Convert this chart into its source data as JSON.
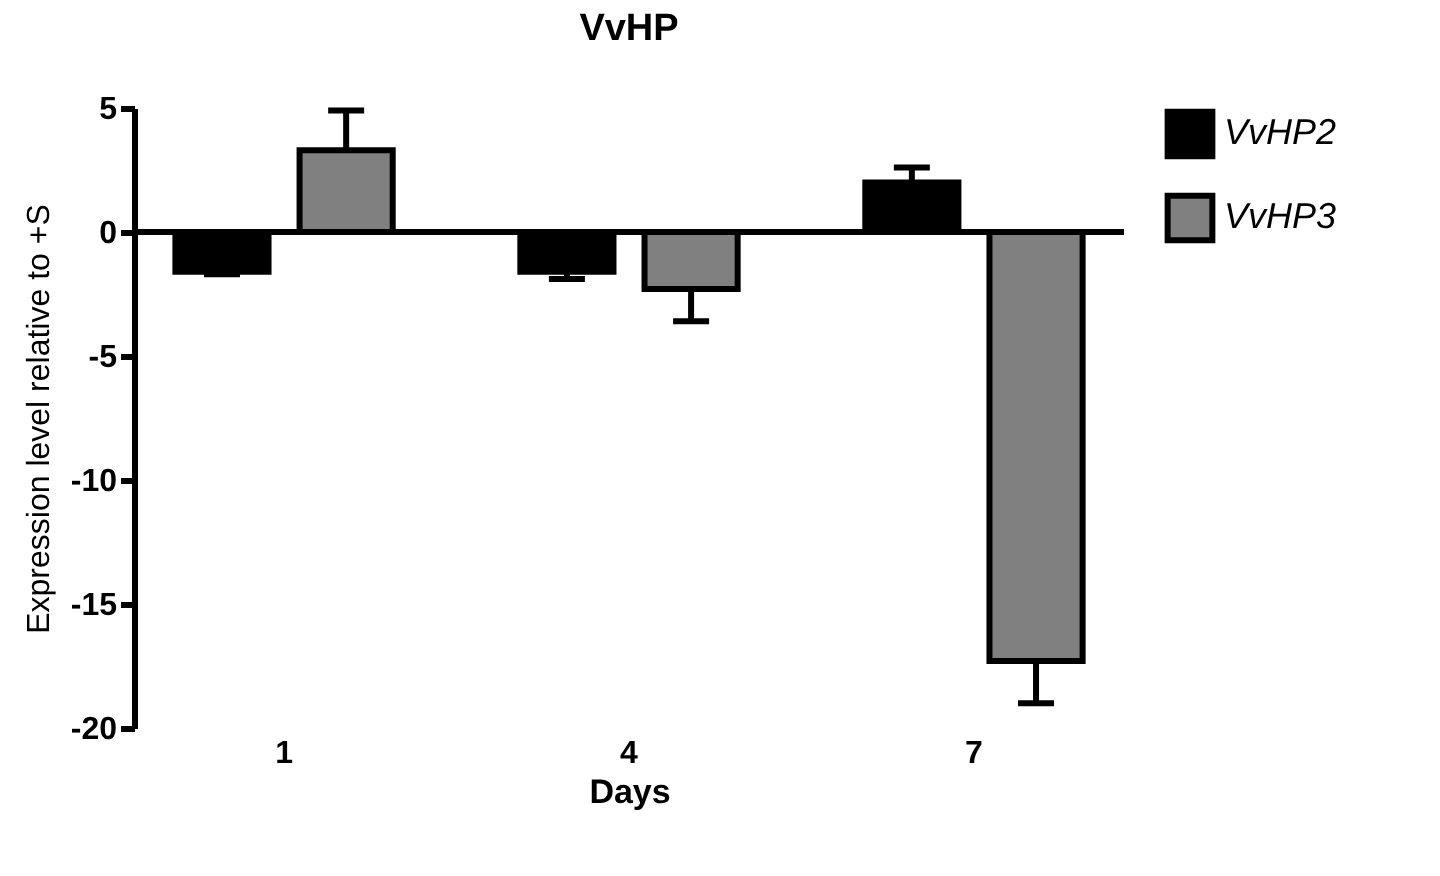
{
  "chart_data": {
    "type": "bar",
    "title": "VvHP",
    "xlabel": "Days",
    "ylabel": "Expression level relative to +S",
    "categories": [
      "1",
      "4",
      "7"
    ],
    "series": [
      {
        "name": "VvHP2",
        "color": "#000000",
        "values": [
          -1.6,
          -1.6,
          2.0
        ],
        "errors": [
          [
            -1.7,
            -1.6
          ],
          [
            -1.9,
            -1.6
          ],
          [
            2.0,
            2.6
          ]
        ]
      },
      {
        "name": "VvHP3",
        "color": "#808080",
        "values": [
          3.3,
          -2.3,
          -17.3
        ],
        "errors": [
          [
            3.3,
            4.9
          ],
          [
            -3.6,
            -2.3
          ],
          [
            -19.0,
            -17.3
          ]
        ]
      }
    ],
    "ylim": [
      -20,
      5
    ],
    "yticks": [
      -20,
      -15,
      -10,
      -5,
      0,
      5
    ],
    "legend": "top right"
  }
}
